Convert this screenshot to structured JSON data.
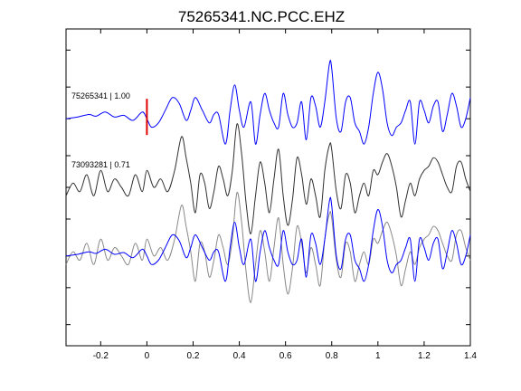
{
  "chart_data": {
    "type": "line",
    "title": "75265341.NC.PCC.EHZ",
    "xlabel": "",
    "ylabel": "",
    "xlim": [
      -0.35,
      1.4
    ],
    "x_ticks": [
      -0.2,
      0,
      0.2,
      0.4,
      0.6,
      0.8,
      1,
      1.2,
      1.4
    ],
    "x_tick_labels": [
      "-0.2",
      "0",
      "0.2",
      "0.4",
      "0.6",
      "0.8",
      "1",
      "1.2",
      "1.4"
    ],
    "ylim": [
      -3.0,
      3.0
    ],
    "y_ticks": [
      -2.6,
      -1.9,
      -1.3,
      -0.6,
      0,
      0.6,
      1.3,
      1.9,
      2.6
    ],
    "grid": false,
    "pick_marker": {
      "x": 0,
      "color": "#e00000"
    },
    "traces": [
      {
        "label": "75265341 | 1.00",
        "color": "#0000ff",
        "offset": 1.3,
        "x": [
          -0.35,
          -0.3,
          -0.25,
          -0.22,
          -0.18,
          -0.14,
          -0.1,
          -0.06,
          -0.02,
          0,
          0.02,
          0.05,
          0.08,
          0.11,
          0.14,
          0.17,
          0.19,
          0.21,
          0.24,
          0.27,
          0.29,
          0.31,
          0.34,
          0.36,
          0.38,
          0.4,
          0.42,
          0.45,
          0.47,
          0.49,
          0.51,
          0.53,
          0.55,
          0.57,
          0.59,
          0.61,
          0.63,
          0.65,
          0.67,
          0.69,
          0.71,
          0.73,
          0.75,
          0.77,
          0.79,
          0.8,
          0.82,
          0.84,
          0.86,
          0.88,
          0.9,
          0.92,
          0.94,
          0.96,
          0.98,
          1.0,
          1.02,
          1.04,
          1.06,
          1.08,
          1.1,
          1.12,
          1.14,
          1.16,
          1.18,
          1.2,
          1.22,
          1.24,
          1.26,
          1.28,
          1.3,
          1.32,
          1.34,
          1.36,
          1.38,
          1.4
        ],
        "y": [
          0.0,
          0.02,
          0.05,
          0.03,
          0.08,
          0.02,
          0.04,
          -0.02,
          0.08,
          0.0,
          -0.1,
          -0.05,
          0.1,
          0.25,
          0.18,
          -0.02,
          0.1,
          0.25,
          0.1,
          -0.05,
          0.05,
          0.05,
          -0.3,
          0.1,
          0.4,
          0.1,
          -0.1,
          0.2,
          -0.3,
          0.05,
          0.3,
          0.1,
          -0.05,
          -0.1,
          0.3,
          0.05,
          -0.1,
          -0.05,
          0.2,
          -0.25,
          0.25,
          0.15,
          -0.1,
          0.2,
          0.65,
          0.6,
          0.0,
          -0.15,
          0.2,
          0.25,
          -0.05,
          -0.15,
          -0.3,
          -0.1,
          0.3,
          0.55,
          0.35,
          -0.05,
          -0.2,
          -0.1,
          -0.05,
          0.1,
          0.2,
          -0.3,
          0.2,
          0.1,
          -0.05,
          0.15,
          0.2,
          -0.15,
          0.05,
          0.3,
          0.15,
          -0.1,
          0.0,
          0.25
        ]
      },
      {
        "label": "73093281 | 0.71",
        "color": "#303030",
        "offset": 0.0,
        "x": [
          -0.35,
          -0.32,
          -0.29,
          -0.26,
          -0.23,
          -0.2,
          -0.17,
          -0.14,
          -0.11,
          -0.08,
          -0.05,
          -0.02,
          0.0,
          0.03,
          0.06,
          0.09,
          0.12,
          0.15,
          0.17,
          0.19,
          0.21,
          0.23,
          0.25,
          0.27,
          0.29,
          0.31,
          0.33,
          0.35,
          0.37,
          0.39,
          0.41,
          0.43,
          0.45,
          0.47,
          0.49,
          0.51,
          0.53,
          0.55,
          0.57,
          0.59,
          0.61,
          0.63,
          0.65,
          0.67,
          0.69,
          0.71,
          0.73,
          0.75,
          0.77,
          0.79,
          0.8,
          0.82,
          0.84,
          0.86,
          0.88,
          0.9,
          0.92,
          0.94,
          0.96,
          0.98,
          1.0,
          1.02,
          1.04,
          1.06,
          1.08,
          1.1,
          1.12,
          1.14,
          1.16,
          1.18,
          1.2,
          1.22,
          1.24,
          1.26,
          1.28,
          1.3,
          1.32,
          1.34,
          1.36,
          1.38,
          1.4
        ],
        "y": [
          -0.1,
          0.05,
          -0.05,
          0.15,
          -0.1,
          0.2,
          -0.05,
          0.1,
          0.0,
          -0.1,
          0.15,
          -0.05,
          0.2,
          0.0,
          0.1,
          -0.05,
          0.2,
          0.6,
          0.35,
          0.05,
          -0.3,
          0.15,
          0.05,
          -0.25,
          -0.05,
          0.25,
          0.1,
          -0.1,
          0.2,
          0.75,
          0.4,
          -0.2,
          -0.55,
          -0.1,
          0.3,
          0.05,
          -0.3,
          0.1,
          0.45,
          -0.1,
          -0.45,
          -0.15,
          0.35,
          0.15,
          -0.2,
          0.1,
          -0.1,
          -0.35,
          0.2,
          0.5,
          0.45,
          -0.05,
          -0.25,
          0.15,
          0.05,
          -0.3,
          -0.1,
          0.05,
          -0.1,
          0.2,
          0.15,
          0.3,
          0.4,
          0.25,
          0.0,
          -0.35,
          -0.15,
          0.05,
          -0.1,
          0.1,
          0.2,
          0.25,
          0.35,
          0.3,
          0.15,
          0.0,
          -0.05,
          0.25,
          0.3,
          0.1,
          -0.05
        ]
      },
      {
        "label": "",
        "color": "#888888",
        "offset": -1.3,
        "x": [
          -0.35,
          -0.32,
          -0.29,
          -0.26,
          -0.23,
          -0.2,
          -0.17,
          -0.14,
          -0.11,
          -0.08,
          -0.05,
          -0.02,
          0.0,
          0.03,
          0.06,
          0.09,
          0.12,
          0.15,
          0.17,
          0.19,
          0.21,
          0.23,
          0.25,
          0.27,
          0.29,
          0.31,
          0.33,
          0.35,
          0.37,
          0.39,
          0.41,
          0.43,
          0.45,
          0.47,
          0.49,
          0.51,
          0.53,
          0.55,
          0.57,
          0.59,
          0.61,
          0.63,
          0.65,
          0.67,
          0.69,
          0.71,
          0.73,
          0.75,
          0.77,
          0.79,
          0.8,
          0.82,
          0.84,
          0.86,
          0.88,
          0.9,
          0.92,
          0.94,
          0.96,
          0.98,
          1.0,
          1.02,
          1.04,
          1.06,
          1.08,
          1.1,
          1.12,
          1.14,
          1.16,
          1.18,
          1.2,
          1.22,
          1.24,
          1.26,
          1.28,
          1.3,
          1.32,
          1.34,
          1.36,
          1.38,
          1.4
        ],
        "y": [
          -0.1,
          0.05,
          -0.05,
          0.15,
          -0.1,
          0.2,
          -0.05,
          0.1,
          0.0,
          -0.1,
          0.15,
          -0.05,
          0.2,
          0.0,
          0.1,
          -0.05,
          0.2,
          0.6,
          0.35,
          0.05,
          -0.3,
          0.15,
          0.05,
          -0.25,
          -0.05,
          0.25,
          0.1,
          -0.1,
          0.2,
          0.75,
          0.4,
          -0.2,
          -0.55,
          -0.1,
          0.3,
          0.05,
          -0.3,
          0.1,
          0.45,
          -0.1,
          -0.45,
          -0.15,
          0.35,
          0.15,
          -0.2,
          0.1,
          -0.1,
          -0.35,
          0.2,
          0.5,
          0.45,
          -0.05,
          -0.25,
          0.15,
          0.05,
          -0.3,
          -0.1,
          0.05,
          -0.1,
          0.2,
          0.15,
          0.3,
          0.4,
          0.25,
          0.0,
          -0.35,
          -0.15,
          0.05,
          -0.1,
          0.1,
          0.2,
          0.25,
          0.35,
          0.3,
          0.15,
          0.0,
          -0.05,
          0.25,
          0.3,
          0.1,
          -0.05
        ]
      },
      {
        "label": "",
        "color": "#0000ff",
        "offset": -1.3,
        "x": [
          -0.35,
          -0.3,
          -0.25,
          -0.22,
          -0.18,
          -0.14,
          -0.1,
          -0.06,
          -0.02,
          0,
          0.02,
          0.05,
          0.08,
          0.11,
          0.14,
          0.17,
          0.19,
          0.21,
          0.24,
          0.27,
          0.29,
          0.31,
          0.34,
          0.36,
          0.38,
          0.4,
          0.42,
          0.45,
          0.47,
          0.49,
          0.51,
          0.53,
          0.55,
          0.57,
          0.59,
          0.61,
          0.63,
          0.65,
          0.67,
          0.69,
          0.71,
          0.73,
          0.75,
          0.77,
          0.79,
          0.8,
          0.82,
          0.84,
          0.86,
          0.88,
          0.9,
          0.92,
          0.94,
          0.96,
          0.98,
          1.0,
          1.02,
          1.04,
          1.06,
          1.08,
          1.1,
          1.12,
          1.14,
          1.16,
          1.18,
          1.2,
          1.22,
          1.24,
          1.26,
          1.28,
          1.3,
          1.32,
          1.34,
          1.36,
          1.38,
          1.4
        ],
        "y": [
          0.0,
          0.02,
          0.05,
          0.03,
          0.08,
          0.02,
          0.04,
          -0.02,
          0.08,
          0.0,
          -0.1,
          -0.05,
          0.1,
          0.25,
          0.18,
          -0.02,
          0.1,
          0.25,
          0.1,
          -0.05,
          0.05,
          0.05,
          -0.3,
          0.1,
          0.4,
          0.1,
          -0.1,
          0.2,
          -0.3,
          0.05,
          0.3,
          0.1,
          -0.05,
          -0.1,
          0.3,
          0.05,
          -0.1,
          -0.05,
          0.2,
          -0.25,
          0.25,
          0.15,
          -0.1,
          0.2,
          0.65,
          0.6,
          0.0,
          -0.15,
          0.2,
          0.25,
          -0.05,
          -0.15,
          -0.3,
          -0.1,
          0.3,
          0.55,
          0.35,
          -0.05,
          -0.2,
          -0.1,
          -0.05,
          0.1,
          0.2,
          -0.3,
          0.2,
          0.1,
          -0.05,
          0.15,
          0.2,
          -0.15,
          0.05,
          0.3,
          0.15,
          -0.1,
          0.0,
          0.25
        ]
      }
    ]
  }
}
